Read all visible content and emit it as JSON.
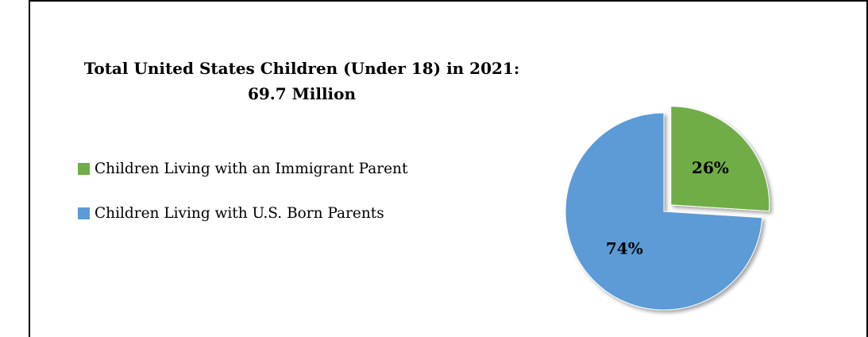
{
  "chart_data": {
    "type": "pie",
    "title": "Total United States Children (Under 18) in 2021:",
    "subtitle": "69.7 Million",
    "categories": [
      "Children Living with an Immigrant Parent",
      "Children Living with U.S. Born Parents"
    ],
    "values": [
      26,
      74
    ],
    "data_labels": [
      "26%",
      "74%"
    ],
    "colors": [
      "#70ad47",
      "#5b9bd5"
    ],
    "exploded": [
      true,
      false
    ],
    "legend_position": "left"
  }
}
